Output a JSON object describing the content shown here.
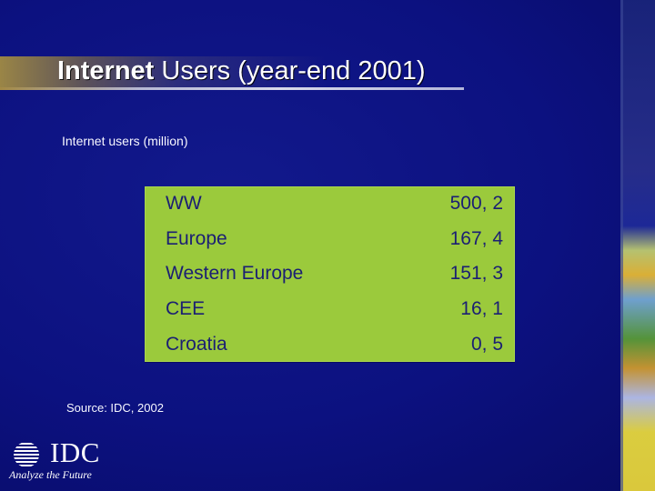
{
  "slide": {
    "title_bold": "Internet",
    "title_rest": " Users (year-end 2001)",
    "subtitle": "Internet users (million)",
    "rows": [
      {
        "label": "WW",
        "value": "500, 2"
      },
      {
        "label": "Europe",
        "value": "167, 4"
      },
      {
        "label": "Western Europe",
        "value": "151, 3"
      },
      {
        "label": "CEE",
        "value": "16, 1"
      },
      {
        "label": "Croatia",
        "value": "0, 5"
      }
    ],
    "source": "Source: IDC, 2002"
  },
  "logo": {
    "wordmark": "IDC",
    "tagline": "Analyze the Future"
  },
  "colors": {
    "background": "#0b0f78",
    "box": "#9bca3c",
    "box_text": "#1b1f73",
    "text": "#ffffff"
  },
  "icons": {
    "logo_mark": "idc-globe-icon"
  }
}
